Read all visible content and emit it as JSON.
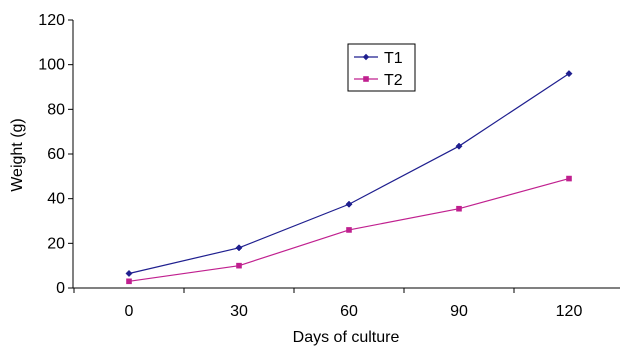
{
  "chart_data": {
    "type": "line",
    "title": "",
    "xlabel": "Days of culture",
    "ylabel": "Weight (g)",
    "categories": [
      "0",
      "30",
      "60",
      "90",
      "120"
    ],
    "x": [
      0,
      30,
      60,
      90,
      120
    ],
    "ylim": [
      0,
      120
    ],
    "yticks": [
      0,
      20,
      40,
      60,
      80,
      100,
      120
    ],
    "grid": false,
    "legend_position": "top-center",
    "series": [
      {
        "name": "T1",
        "color": "#1f1f8f",
        "marker": "diamond",
        "values": [
          6.5,
          18,
          37.5,
          63.5,
          96
        ]
      },
      {
        "name": "T2",
        "color": "#c0208f",
        "marker": "square",
        "values": [
          3,
          10,
          26,
          35.5,
          49
        ]
      }
    ]
  }
}
